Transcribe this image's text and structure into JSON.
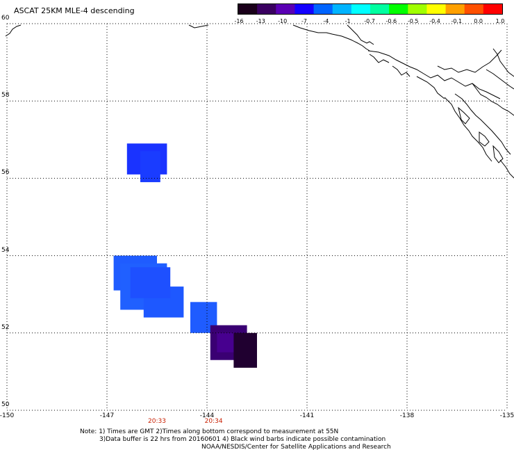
{
  "title": "ASCAT 25KM MLE-4 descending",
  "colorbar": {
    "labels": [
      "-16",
      "-13",
      "-10",
      "-7",
      "-4",
      "-1",
      "-0.7",
      "-0.6",
      "-0.5",
      "-0.4",
      "-0.1",
      "0.0",
      "1.0"
    ],
    "colors": [
      "#1a001a",
      "#3a0060",
      "#5a00b4",
      "#1400ff",
      "#0064ff",
      "#00b4ff",
      "#00ffff",
      "#00ffa0",
      "#00ff00",
      "#a0ff00",
      "#ffff00",
      "#ffa000",
      "#ff5000",
      "#ff0000"
    ]
  },
  "axes": {
    "lat_labels": [
      "60",
      "58",
      "56",
      "54",
      "52",
      "50"
    ],
    "lon_labels": [
      "-150",
      "-147",
      "-144",
      "-141",
      "-138",
      "-135"
    ],
    "lat_range": [
      50,
      60
    ],
    "lon_range": [
      -150,
      -135
    ]
  },
  "times": [
    {
      "label": "20:33",
      "lon": -145.5
    },
    {
      "label": "20:34",
      "lon": -143.8
    }
  ],
  "notes": [
    "Note: 1) Times are GMT 2)Times along bottom correspond to measurement at 55N",
    "3)Data buffer is 22 hrs from 20160601 4) Black wind barbs indicate possible contamination",
    "NOAA/NESDIS/Center for Satellite Applications and Research"
  ],
  "cells": [
    {
      "lon0": -146.4,
      "lon1": -145.2,
      "lat0": 56.1,
      "lat1": 56.9,
      "color": "#1a33ff"
    },
    {
      "lon0": -146.0,
      "lon1": -145.4,
      "lat0": 55.9,
      "lat1": 56.7,
      "color": "#1a3cff"
    },
    {
      "lon0": -146.8,
      "lon1": -145.5,
      "lat0": 53.1,
      "lat1": 54.0,
      "color": "#1f5cff"
    },
    {
      "lon0": -146.6,
      "lon1": -145.2,
      "lat0": 52.6,
      "lat1": 53.8,
      "color": "#2060ff"
    },
    {
      "lon0": -145.9,
      "lon1": -144.7,
      "lat0": 52.4,
      "lat1": 53.2,
      "color": "#1e58ff"
    },
    {
      "lon0": -146.3,
      "lon1": -145.1,
      "lat0": 52.9,
      "lat1": 53.7,
      "color": "#1e50ff"
    },
    {
      "lon0": -144.5,
      "lon1": -143.7,
      "lat0": 52.0,
      "lat1": 52.8,
      "color": "#1f5cff"
    },
    {
      "lon0": -143.9,
      "lon1": -142.8,
      "lat0": 51.3,
      "lat1": 52.2,
      "color": "#3a0073"
    },
    {
      "lon0": -143.7,
      "lon1": -143.1,
      "lat0": 51.5,
      "lat1": 52.0,
      "color": "#47008f"
    },
    {
      "lon0": -143.2,
      "lon1": -142.5,
      "lat0": 51.1,
      "lat1": 52.0,
      "color": "#200030"
    }
  ]
}
